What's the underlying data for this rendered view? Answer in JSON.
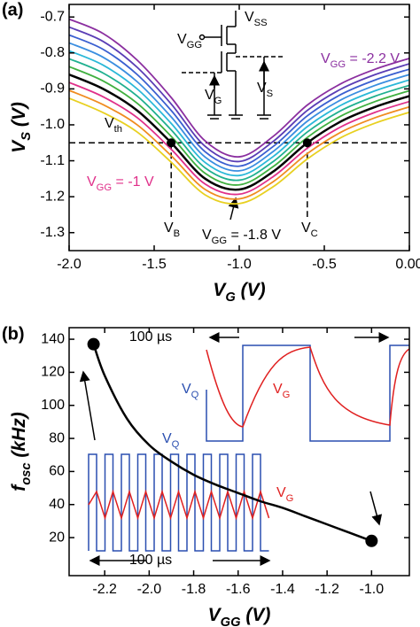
{
  "chart_data": [
    {
      "type": "line",
      "panel_label": "(a)",
      "xlabel": {
        "main": "V",
        "sub": "G",
        "rest": " (V)"
      },
      "ylabel": {
        "main": "V",
        "sub": "S",
        "rest": " (V)"
      },
      "x": [
        -2.0,
        -1.8,
        -1.6,
        -1.4,
        -1.2,
        -1.0,
        -0.8,
        -0.6,
        -0.4,
        -0.2,
        0.0
      ],
      "series": [
        {
          "color": "#8b2fa0",
          "values": [
            -0.706,
            -0.746,
            -0.82,
            -0.924,
            -1.045,
            -1.089,
            -1.032,
            -0.945,
            -0.885,
            -0.845,
            -0.815
          ]
        },
        {
          "color": "#5a3db5",
          "values": [
            -0.728,
            -0.768,
            -0.84,
            -0.942,
            -1.06,
            -1.102,
            -1.046,
            -0.96,
            -0.9,
            -0.86,
            -0.83
          ]
        },
        {
          "color": "#3a5fd0",
          "values": [
            -0.75,
            -0.79,
            -0.86,
            -0.96,
            -1.075,
            -1.115,
            -1.06,
            -0.975,
            -0.915,
            -0.875,
            -0.845
          ]
        },
        {
          "color": "#3a8ee0",
          "values": [
            -0.772,
            -0.812,
            -0.88,
            -0.978,
            -1.09,
            -1.128,
            -1.074,
            -0.99,
            -0.93,
            -0.89,
            -0.86
          ]
        },
        {
          "color": "#2ab8d8",
          "values": [
            -0.794,
            -0.834,
            -0.9,
            -0.996,
            -1.105,
            -1.141,
            -1.088,
            -1.005,
            -0.945,
            -0.905,
            -0.875
          ]
        },
        {
          "color": "#20b090",
          "values": [
            -0.816,
            -0.856,
            -0.92,
            -1.014,
            -1.12,
            -1.154,
            -1.102,
            -1.02,
            -0.96,
            -0.92,
            -0.89
          ]
        },
        {
          "color": "#40b040",
          "values": [
            -0.838,
            -0.878,
            -0.94,
            -1.032,
            -1.135,
            -1.167,
            -1.116,
            -1.035,
            -0.975,
            -0.935,
            -0.905
          ]
        },
        {
          "color": "#000000",
          "values": [
            -0.86,
            -0.9,
            -0.96,
            -1.05,
            -1.15,
            -1.18,
            -1.13,
            -1.05,
            -0.99,
            -0.95,
            -0.92
          ]
        },
        {
          "color": "#e0308a",
          "values": [
            -0.882,
            -0.922,
            -0.98,
            -1.068,
            -1.165,
            -1.193,
            -1.144,
            -1.065,
            -1.005,
            -0.965,
            -0.935
          ]
        },
        {
          "color": "#f08c20",
          "values": [
            -0.904,
            -0.944,
            -1.0,
            -1.086,
            -1.18,
            -1.206,
            -1.158,
            -1.08,
            -1.02,
            -0.98,
            -0.95
          ]
        },
        {
          "color": "#e8d020",
          "values": [
            -0.926,
            -0.966,
            -1.02,
            -1.104,
            -1.195,
            -1.219,
            -1.172,
            -1.095,
            -1.035,
            -0.995,
            -0.965
          ]
        }
      ],
      "reference_y": -1.05,
      "crossings_x": [
        -1.4,
        -0.6
      ],
      "xlim": [
        -2.0,
        0.0
      ],
      "xticks": [
        {
          "value": -2.0,
          "label": "-2.0"
        },
        -1.5,
        {
          "value": -1.0,
          "label": "-1.0"
        },
        -0.5,
        {
          "value": 0.0,
          "label": "0.00"
        }
      ],
      "ylim": [
        -1.35,
        -0.665
      ],
      "yticks": [
        -0.7,
        -0.8,
        -0.9,
        {
          "value": -1.0,
          "label": "-1.0"
        },
        -1.1,
        -1.2,
        -1.3
      ],
      "annotations": [
        {
          "main": "V",
          "sub": "th",
          "rest": "",
          "color": "#000000"
        },
        {
          "main": "V",
          "sub": "GG",
          "rest": " = -2.2 V",
          "color": "#8b2fa0"
        },
        {
          "main": "V",
          "sub": "GG",
          "rest": " = -1 V",
          "color": "#e0308a"
        },
        {
          "main": "V",
          "sub": "B",
          "rest": "",
          "color": "#000000"
        },
        {
          "main": "V",
          "sub": "GG",
          "rest": " = -1.8 V",
          "color": "#000000"
        },
        {
          "main": "V",
          "sub": "C",
          "rest": "",
          "color": "#000000"
        },
        {
          "main": "V",
          "sub": "SS",
          "rest": "",
          "color": "#000000"
        },
        {
          "main": "V",
          "sub": "GG",
          "rest": "",
          "color": "#000000"
        },
        {
          "main": "V",
          "sub": "G",
          "rest": "",
          "color": "#000000"
        },
        {
          "main": "V",
          "sub": "S",
          "rest": "",
          "color": "#000000"
        }
      ]
    },
    {
      "type": "line",
      "panel_label": "(b)",
      "xlabel": {
        "main": "V",
        "sub": "GG",
        "rest": " (V)"
      },
      "ylabel": {
        "main": "f",
        "sub": "osc",
        "rest": " (kHz)"
      },
      "x": [
        -2.25,
        -2.2,
        -2.1,
        -2.0,
        -1.9,
        -1.8,
        -1.7,
        -1.6,
        -1.5,
        -1.4,
        -1.3,
        -1.2,
        -1.1,
        -1.0
      ],
      "series": [
        {
          "color": "#000000",
          "values": [
            137,
            118,
            92,
            76,
            66,
            58,
            52,
            47,
            42,
            38,
            33,
            28,
            23,
            18
          ]
        }
      ],
      "xlim": [
        -2.36,
        -0.83
      ],
      "xticks": [
        -2.2,
        {
          "value": -2.0,
          "label": "-2.0"
        },
        -1.8,
        -1.6,
        -1.4,
        -1.2,
        {
          "value": -1.0,
          "label": "-1.0"
        }
      ],
      "ylim": [
        -3,
        147
      ],
      "yticks": [
        20,
        40,
        60,
        80,
        100,
        120,
        140
      ],
      "annotations": [
        {
          "main": "V",
          "sub": "Q",
          "rest": "",
          "color": "#2a4fb0"
        },
        {
          "main": "V",
          "sub": "G",
          "rest": "",
          "color": "#e02020"
        },
        {
          "main": "V",
          "sub": "Q",
          "rest": "",
          "color": "#2a4fb0"
        },
        {
          "main": "V",
          "sub": "G",
          "rest": "",
          "color": "#e02020"
        },
        {
          "main": "100 µs",
          "color": "#000000"
        },
        {
          "main": "100 µs",
          "color": "#000000"
        }
      ]
    }
  ]
}
